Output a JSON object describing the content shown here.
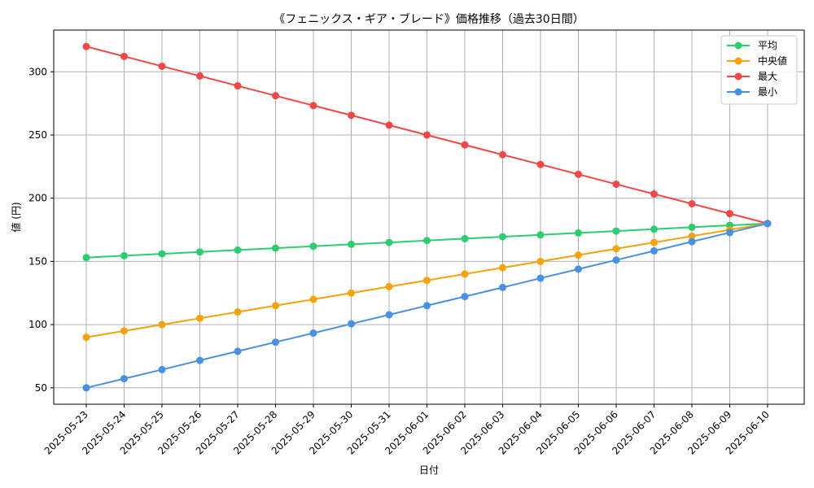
{
  "chart_data": {
    "type": "line",
    "title": "《フェニックス・ギア・ブレード》価格推移（過去30日間）",
    "xlabel": "日付",
    "ylabel": "値 (円)",
    "categories": [
      "2025-05-23",
      "2025-05-24",
      "2025-05-25",
      "2025-05-26",
      "2025-05-27",
      "2025-05-28",
      "2025-05-29",
      "2025-05-30",
      "2025-05-31",
      "2025-06-01",
      "2025-06-02",
      "2025-06-03",
      "2025-06-04",
      "2025-06-05",
      "2025-06-06",
      "2025-06-07",
      "2025-06-08",
      "2025-06-09",
      "2025-06-10"
    ],
    "ylim": [
      37,
      333
    ],
    "yticks": [
      50,
      100,
      150,
      200,
      250,
      300
    ],
    "grid": true,
    "legend_position": "top-right",
    "series": [
      {
        "name": "平均",
        "color": "#2ecc71",
        "values": [
          153,
          154.5,
          156,
          157.5,
          159,
          160.5,
          162,
          163.5,
          165,
          166.5,
          168,
          169.5,
          171,
          172.5,
          174,
          175.5,
          177,
          178.5,
          180
        ]
      },
      {
        "name": "中央値",
        "color": "#f5a30a",
        "values": [
          90,
          95,
          100,
          105,
          110,
          115,
          120,
          125,
          130,
          135,
          140,
          145,
          150,
          155,
          160,
          165,
          170,
          175,
          180
        ]
      },
      {
        "name": "最大",
        "color": "#f04747",
        "values": [
          320,
          312.2,
          304.4,
          296.7,
          288.9,
          281.1,
          273.3,
          265.6,
          257.8,
          250,
          242.2,
          234.4,
          226.7,
          218.9,
          211.1,
          203.3,
          195.6,
          187.8,
          180
        ]
      },
      {
        "name": "最小",
        "color": "#4a90e2",
        "values": [
          50,
          57.2,
          64.4,
          71.7,
          78.9,
          86.1,
          93.3,
          100.6,
          107.8,
          115,
          122.2,
          129.4,
          136.7,
          143.9,
          151.1,
          158.3,
          165.6,
          172.8,
          180
        ]
      }
    ]
  }
}
